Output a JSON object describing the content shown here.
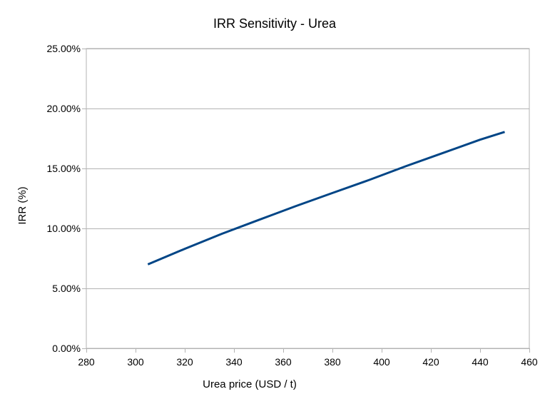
{
  "chart_data": {
    "type": "line",
    "title": "IRR Sensitivity - Urea",
    "xlabel": "Urea price (USD / t)",
    "ylabel": "IRR (%)",
    "xlim": [
      280,
      460
    ],
    "ylim": [
      0,
      0.25
    ],
    "x_ticks": [
      280,
      300,
      320,
      340,
      360,
      380,
      400,
      420,
      440,
      460
    ],
    "y_ticks": [
      0,
      0.05,
      0.1,
      0.15,
      0.2,
      0.25
    ],
    "x_tick_labels": [
      "280",
      "300",
      "320",
      "340",
      "360",
      "380",
      "400",
      "420",
      "440",
      "460"
    ],
    "y_tick_labels": [
      "0.00%",
      "5.00%",
      "10.00%",
      "15.00%",
      "20.00%",
      "25.00%"
    ],
    "grid": "horizontal",
    "legend": "none",
    "series": [
      {
        "color": "#004586",
        "x": [
          305,
          320,
          335,
          350,
          365,
          380,
          395,
          410,
          425,
          440,
          450
        ],
        "y": [
          0.07,
          0.083,
          0.0955,
          0.107,
          0.1185,
          0.1295,
          0.1405,
          0.152,
          0.163,
          0.174,
          0.1805
        ]
      }
    ]
  }
}
